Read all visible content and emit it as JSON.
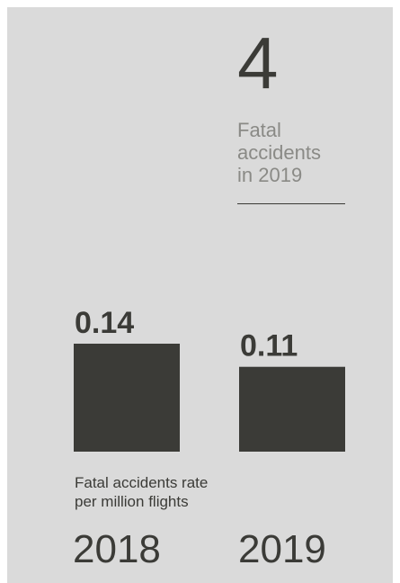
{
  "headline": {
    "value": "4",
    "label_lines": [
      "Fatal",
      "accidents",
      "in 2019"
    ]
  },
  "chart_data": {
    "type": "bar",
    "categories": [
      "2018",
      "2019"
    ],
    "values": [
      0.14,
      0.11
    ],
    "value_labels": [
      "0.14",
      "0.11"
    ],
    "caption_lines": [
      "Fatal accidents rate",
      "per million flights"
    ],
    "ylim": [
      0,
      0.14
    ],
    "grid": false
  },
  "colors": {
    "background": "#dadada",
    "bar": "#3b3b37",
    "text_dark": "#3b3b37",
    "text_muted": "#8a8a86"
  }
}
